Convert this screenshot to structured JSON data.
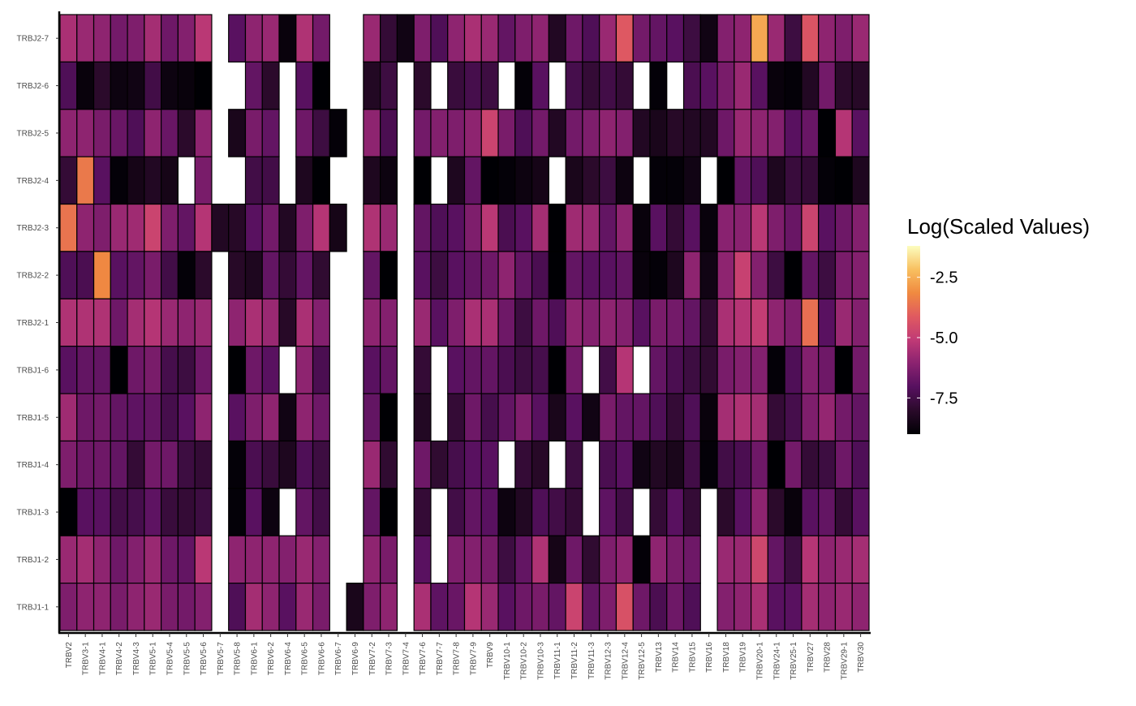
{
  "chart_data": {
    "type": "heatmap",
    "title": "",
    "xlabel": "",
    "ylabel": "",
    "legend": {
      "title": "Log(Scaled Values)",
      "position": "right",
      "ticks": [
        -7.5,
        -5.0,
        -2.5
      ],
      "tick_labels": [
        "-7.5",
        "-5.0",
        "-2.5"
      ],
      "range": [
        -9.0,
        -1.2
      ],
      "colormap": "inferno-like",
      "color_stops": [
        "#000004",
        "#2a0a2a",
        "#56105f",
        "#8a2270",
        "#c03a76",
        "#e05a60",
        "#f08a40",
        "#f8c060",
        "#fcfdbf"
      ]
    },
    "grid": false,
    "x_categories": [
      "TRBV2",
      "TRBV3-1",
      "TRBV4-1",
      "TRBV4-2",
      "TRBV4-3",
      "TRBV5-1",
      "TRBV5-4",
      "TRBV5-5",
      "TRBV5-6",
      "TRBV5-7",
      "TRBV5-8",
      "TRBV6-1",
      "TRBV6-2",
      "TRBV6-4",
      "TRBV6-5",
      "TRBV6-6",
      "TRBV6-7",
      "TRBV6-9",
      "TRBV7-2",
      "TRBV7-3",
      "TRBV7-4",
      "TRBV7-6",
      "TRBV7-7",
      "TRBV7-8",
      "TRBV7-9",
      "TRBV9",
      "TRBV10-1",
      "TRBV10-2",
      "TRBV10-3",
      "TRBV11-1",
      "TRBV11-2",
      "TRBV11-3",
      "TRBV12-3",
      "TRBV12-4",
      "TRBV12-5",
      "TRBV13",
      "TRBV14",
      "TRBV15",
      "TRBV16",
      "TRBV18",
      "TRBV19",
      "TRBV20-1",
      "TRBV24-1",
      "TRBV25-1",
      "TRBV27",
      "TRBV28",
      "TRBV29-1",
      "TRBV30"
    ],
    "y_categories": [
      "TRBJ2-7",
      "TRBJ2-6",
      "TRBJ2-5",
      "TRBJ2-4",
      "TRBJ2-3",
      "TRBJ2-2",
      "TRBJ2-1",
      "TRBJ1-6",
      "TRBJ1-5",
      "TRBJ1-4",
      "TRBJ1-3",
      "TRBJ1-2",
      "TRBJ1-1"
    ],
    "values": [
      [
        -5.5,
        -5.8,
        -6.0,
        -6.5,
        -6.3,
        -5.6,
        -6.6,
        -6.2,
        -5.2,
        null,
        -7.0,
        -6.0,
        -5.8,
        -8.8,
        -5.4,
        -6.5,
        null,
        null,
        -5.8,
        -7.8,
        -8.6,
        -6.3,
        -7.2,
        -6.0,
        -5.5,
        -5.8,
        -6.8,
        -6.3,
        -6.0,
        -8.2,
        -6.6,
        -7.2,
        -5.8,
        -4.2,
        -6.5,
        -6.8,
        -7.0,
        -7.6,
        -8.6,
        -6.2,
        -6.0,
        -2.6,
        -5.8,
        -7.6,
        -4.3,
        -6.0,
        -6.3,
        -5.8
      ],
      [
        -7.2,
        -8.8,
        -8.0,
        -8.7,
        -8.6,
        -7.5,
        -8.7,
        -8.8,
        -9.0,
        null,
        null,
        -6.8,
        -8.0,
        null,
        -7.0,
        -9.0,
        null,
        null,
        -8.2,
        -7.6,
        null,
        -8.0,
        null,
        -7.7,
        -7.4,
        -7.6,
        null,
        -8.9,
        -7.0,
        null,
        -7.4,
        -7.8,
        -7.5,
        -7.8,
        null,
        -8.9,
        null,
        -7.3,
        -7.0,
        -6.4,
        -5.8,
        -7.0,
        -8.8,
        -8.9,
        -8.2,
        -6.5,
        -8.0,
        -8.1
      ],
      [
        -6.0,
        -6.0,
        -6.4,
        -6.7,
        -7.2,
        -6.0,
        -6.7,
        -8.0,
        -6.0,
        null,
        -8.4,
        -6.4,
        -6.8,
        null,
        -6.6,
        -7.6,
        -8.9,
        null,
        -6.0,
        -7.3,
        null,
        -6.5,
        -6.2,
        -6.3,
        -6.0,
        -4.8,
        -6.4,
        -7.2,
        -6.5,
        -8.2,
        -6.5,
        -6.3,
        -6.0,
        -6.2,
        -8.2,
        -8.4,
        -8.1,
        -8.2,
        -8.2,
        -6.6,
        -5.8,
        -6.0,
        -6.2,
        -7.0,
        -6.7,
        -9.0,
        -5.3,
        -7.0
      ],
      [
        -7.8,
        -3.5,
        -7.0,
        -8.9,
        -8.5,
        -8.2,
        -8.5,
        null,
        -6.4,
        null,
        null,
        -7.5,
        -7.5,
        null,
        -8.3,
        -9.0,
        null,
        null,
        -8.3,
        -8.7,
        null,
        -9.0,
        null,
        -8.3,
        -6.8,
        -9.0,
        -8.9,
        -8.7,
        -8.5,
        null,
        -8.4,
        -8.0,
        -7.6,
        -8.7,
        null,
        -8.9,
        -8.9,
        -8.6,
        null,
        -9.0,
        -6.8,
        -7.2,
        -8.3,
        -7.7,
        -7.8,
        -8.9,
        -9.0,
        -8.3
      ],
      [
        -3.6,
        -6.0,
        -6.3,
        -5.8,
        -5.7,
        -4.8,
        -6.3,
        -6.8,
        -5.3,
        -8.2,
        -8.1,
        -7.0,
        -6.5,
        -8.2,
        -6.3,
        -5.3,
        -8.5,
        null,
        -5.4,
        -5.8,
        null,
        -6.8,
        -7.2,
        -7.0,
        -6.3,
        -5.2,
        -7.3,
        -7.0,
        -5.6,
        -9.0,
        -5.7,
        -5.8,
        -6.8,
        -6.0,
        -8.8,
        -7.0,
        -7.8,
        -7.0,
        -8.8,
        -6.1,
        -6.1,
        -5.2,
        -6.3,
        -6.7,
        -4.8,
        -7.0,
        -6.6,
        -6.2
      ],
      [
        -7.2,
        -7.3,
        -3.2,
        -7.0,
        -6.8,
        -6.4,
        -7.5,
        -8.9,
        -8.0,
        null,
        -8.1,
        -8.3,
        -6.8,
        -7.8,
        -6.8,
        -7.9,
        null,
        null,
        -6.8,
        -9.0,
        null,
        -7.0,
        -7.6,
        -7.0,
        -6.8,
        -6.6,
        -6.0,
        -6.8,
        -7.3,
        -9.0,
        -6.8,
        -7.0,
        -7.0,
        -6.8,
        -8.8,
        -8.9,
        -8.3,
        -6.0,
        -8.6,
        -6.0,
        -4.9,
        -6.2,
        -7.6,
        -9.0,
        -6.8,
        -7.6,
        -6.4,
        -6.2
      ],
      [
        -5.4,
        -5.4,
        -5.4,
        -6.6,
        -5.6,
        -5.3,
        -5.8,
        -6.0,
        -5.8,
        null,
        -6.0,
        -5.5,
        -5.8,
        -8.1,
        -5.5,
        -6.2,
        null,
        null,
        -6.0,
        -6.2,
        null,
        -5.8,
        -7.0,
        -6.3,
        -5.5,
        -5.5,
        -6.6,
        -7.6,
        -6.6,
        -7.2,
        -6.0,
        -6.2,
        -6.0,
        -6.2,
        -7.0,
        -6.4,
        -6.5,
        -6.8,
        -7.9,
        -5.5,
        -5.3,
        -5.0,
        -6.0,
        -6.3,
        -3.7,
        -7.0,
        -5.8,
        -6.2
      ],
      [
        -7.0,
        -6.8,
        -6.8,
        -9.0,
        -6.6,
        -6.4,
        -7.4,
        -7.6,
        -6.6,
        null,
        -9.0,
        -6.6,
        -7.0,
        null,
        -6.0,
        -7.3,
        null,
        null,
        -7.0,
        -6.8,
        null,
        -7.8,
        null,
        -7.0,
        -6.8,
        -6.8,
        -7.3,
        -7.6,
        -7.4,
        -9.0,
        -6.5,
        null,
        -7.5,
        -5.3,
        null,
        -6.8,
        -7.3,
        -7.6,
        -7.9,
        -6.4,
        -6.2,
        -6.2,
        -8.9,
        -7.2,
        -6.2,
        -6.6,
        -9.0,
        -6.5
      ],
      [
        -5.7,
        -6.6,
        -6.5,
        -6.8,
        -6.9,
        -6.8,
        -7.4,
        -7.0,
        -6.0,
        null,
        -7.0,
        -6.3,
        -6.0,
        -8.6,
        -6.0,
        -6.6,
        null,
        null,
        -6.8,
        -9.0,
        null,
        -8.2,
        null,
        -7.8,
        -6.6,
        -7.4,
        -6.8,
        -6.3,
        -7.0,
        -8.4,
        -7.0,
        -8.6,
        -6.4,
        -6.8,
        -6.8,
        -7.2,
        -7.8,
        -7.2,
        -8.8,
        -5.6,
        -5.4,
        -5.6,
        -7.8,
        -7.4,
        -6.3,
        -5.9,
        -6.5,
        -6.8
      ],
      [
        -6.3,
        -6.6,
        -6.6,
        -6.8,
        -7.8,
        -6.5,
        -6.6,
        -7.6,
        -7.8,
        null,
        -8.9,
        -7.3,
        -7.7,
        -8.3,
        -7.2,
        -7.6,
        null,
        null,
        -5.8,
        -7.9,
        null,
        -6.6,
        -7.9,
        -7.4,
        -7.0,
        -7.0,
        null,
        -7.8,
        -8.1,
        null,
        -7.6,
        null,
        -7.3,
        -7.0,
        -8.6,
        -8.2,
        -8.4,
        -7.5,
        -8.9,
        -7.5,
        -7.3,
        -6.6,
        -9.0,
        -6.5,
        -7.8,
        -7.6,
        -6.6,
        -7.2
      ],
      [
        -9.0,
        -7.0,
        -7.0,
        -7.5,
        -7.4,
        -6.9,
        -7.7,
        -7.8,
        -7.6,
        null,
        -8.9,
        -7.0,
        -8.7,
        null,
        -6.8,
        -7.5,
        null,
        null,
        -6.8,
        -9.0,
        null,
        -7.8,
        null,
        -7.5,
        -6.8,
        -7.0,
        -8.7,
        -8.2,
        -7.2,
        -7.5,
        -7.8,
        null,
        -6.9,
        -7.5,
        null,
        -7.8,
        -7.0,
        -7.8,
        null,
        -8.0,
        -7.0,
        -6.0,
        -8.0,
        -8.8,
        -7.0,
        -6.8,
        -7.8,
        -7.0
      ],
      [
        -5.8,
        -5.6,
        -6.0,
        -6.6,
        -6.2,
        -5.8,
        -6.6,
        -6.8,
        -5.2,
        null,
        -6.0,
        -6.0,
        -6.0,
        -6.2,
        -5.8,
        -6.2,
        null,
        null,
        -6.0,
        -6.4,
        null,
        -7.0,
        null,
        -6.3,
        -6.2,
        -6.4,
        -7.6,
        -6.8,
        -5.4,
        -8.5,
        -6.6,
        -7.9,
        -6.3,
        -6.0,
        -8.9,
        -6.0,
        -6.4,
        -6.6,
        null,
        -5.8,
        -5.8,
        -4.7,
        -6.8,
        -7.6,
        -5.3,
        -6.0,
        -5.8,
        -5.6
      ],
      [
        -6.3,
        -6.0,
        -6.0,
        -6.4,
        -6.0,
        -5.8,
        -6.4,
        -6.5,
        -6.2,
        null,
        -7.2,
        -5.6,
        -6.0,
        -7.0,
        -5.8,
        -6.4,
        null,
        -8.4,
        -6.3,
        -6.0,
        null,
        -5.5,
        -6.9,
        -6.7,
        -5.3,
        -5.8,
        -7.0,
        -6.6,
        -6.4,
        -6.8,
        -4.8,
        -6.8,
        -6.3,
        -4.4,
        -6.6,
        -7.3,
        -6.6,
        -7.2,
        null,
        -6.2,
        -6.0,
        -5.5,
        -7.0,
        -7.0,
        -5.6,
        -6.0,
        -5.8,
        -6.0
      ]
    ]
  }
}
